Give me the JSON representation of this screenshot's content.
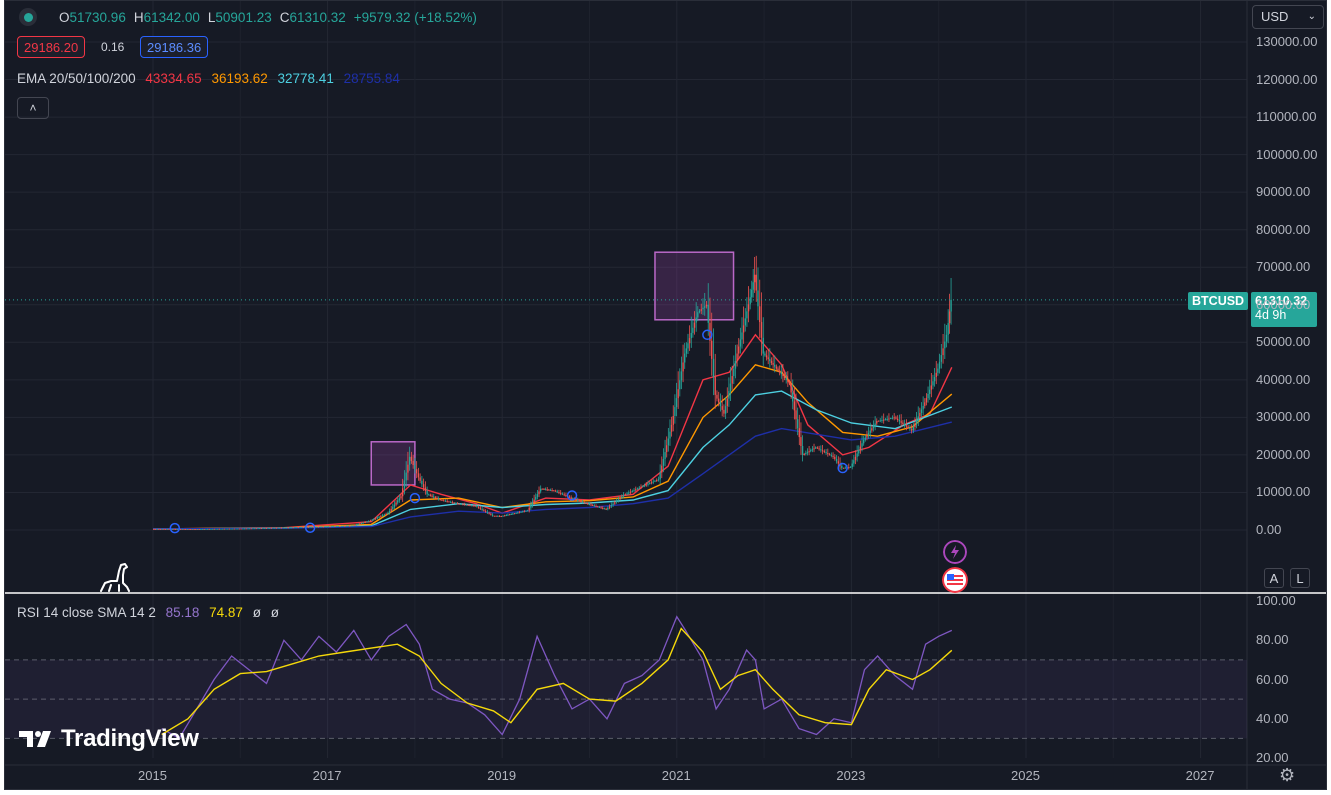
{
  "header": {
    "ohlc": [
      {
        "key": "O",
        "value": "51730.96"
      },
      {
        "key": "H",
        "value": "61342.00"
      },
      {
        "key": "L",
        "value": "50901.23"
      },
      {
        "key": "C",
        "value": "61310.32"
      }
    ],
    "change": "+9579.32 (+18.52%)",
    "sell_price": "29186.20",
    "spread": "0.16",
    "buy_price": "29186.36"
  },
  "ema": {
    "label": "EMA 20/50/100/200",
    "values": [
      {
        "value": "43334.65",
        "color": "#f23645"
      },
      {
        "value": "36193.62",
        "color": "#ff9800"
      },
      {
        "value": "32778.41",
        "color": "#4dd0e1"
      },
      {
        "value": "28755.84",
        "color": "#1e2fa8"
      }
    ]
  },
  "rsi": {
    "label": "RSI 14 close SMA 14 2",
    "value": "85.18",
    "sma": "74.87",
    "extra1": "ø",
    "extra2": "ø"
  },
  "currency": "USD",
  "symbol_tag": "BTCUSD",
  "price_tag": {
    "price": "61310.32",
    "countdown": "4d 9h"
  },
  "price_axis": [
    "130000.00",
    "120000.00",
    "110000.00",
    "100000.00",
    "90000.00",
    "80000.00",
    "70000.00",
    "60000.00",
    "50000.00",
    "40000.00",
    "30000.00",
    "20000.00",
    "10000.00",
    "0.00"
  ],
  "rsi_axis": [
    "100.00",
    "80.00",
    "60.00",
    "40.00",
    "20.00"
  ],
  "time_axis": [
    "2015",
    "2017",
    "2019",
    "2021",
    "2023",
    "2025",
    "2027"
  ],
  "scale_buttons": {
    "auto": "A",
    "log": "L"
  },
  "brand": "TradingView",
  "colors": {
    "background": "#161a25",
    "up": "#26a69a",
    "down": "#ef5350",
    "rsi_line": "#7e57c2",
    "rsi_sma": "#f5d90a",
    "highlight": "#ab47bc"
  },
  "chart_data": {
    "type": "line",
    "symbol": "BTCUSD",
    "price_ylim": [
      0,
      130000
    ],
    "rsi_ylim": [
      20,
      100
    ],
    "x_range": [
      2015.0,
      2027.5
    ],
    "price_path": [
      [
        2015.0,
        300
      ],
      [
        2015.5,
        260
      ],
      [
        2016.0,
        400
      ],
      [
        2016.5,
        650
      ],
      [
        2017.0,
        950
      ],
      [
        2017.3,
        1200
      ],
      [
        2017.5,
        2500
      ],
      [
        2017.7,
        4500
      ],
      [
        2017.85,
        9000
      ],
      [
        2017.95,
        19500
      ],
      [
        2018.05,
        14000
      ],
      [
        2018.15,
        9500
      ],
      [
        2018.3,
        8000
      ],
      [
        2018.5,
        7000
      ],
      [
        2018.7,
        6400
      ],
      [
        2018.9,
        3800
      ],
      [
        2019.0,
        3700
      ],
      [
        2019.3,
        5200
      ],
      [
        2019.45,
        11000
      ],
      [
        2019.6,
        10500
      ],
      [
        2019.8,
        8500
      ],
      [
        2019.95,
        7200
      ],
      [
        2020.2,
        5500
      ],
      [
        2020.4,
        9300
      ],
      [
        2020.6,
        11500
      ],
      [
        2020.8,
        13500
      ],
      [
        2020.95,
        28000
      ],
      [
        2021.1,
        47000
      ],
      [
        2021.25,
        58000
      ],
      [
        2021.35,
        60000
      ],
      [
        2021.45,
        36000
      ],
      [
        2021.55,
        31000
      ],
      [
        2021.7,
        47000
      ],
      [
        2021.85,
        62000
      ],
      [
        2021.9,
        68000
      ],
      [
        2022.0,
        47000
      ],
      [
        2022.15,
        43000
      ],
      [
        2022.3,
        39000
      ],
      [
        2022.45,
        20000
      ],
      [
        2022.6,
        22000
      ],
      [
        2022.8,
        19500
      ],
      [
        2022.9,
        16500
      ],
      [
        2023.0,
        16800
      ],
      [
        2023.15,
        24000
      ],
      [
        2023.3,
        29000
      ],
      [
        2023.5,
        30000
      ],
      [
        2023.7,
        26500
      ],
      [
        2023.85,
        34000
      ],
      [
        2024.0,
        43000
      ],
      [
        2024.1,
        52000
      ],
      [
        2024.15,
        61310
      ]
    ],
    "ema_series": [
      {
        "name": "EMA 20",
        "color": "#f23645",
        "points": [
          [
            2015.0,
            300
          ],
          [
            2016.5,
            600
          ],
          [
            2017.5,
            2200
          ],
          [
            2017.95,
            12000
          ],
          [
            2018.3,
            9500
          ],
          [
            2018.7,
            7000
          ],
          [
            2019.0,
            4500
          ],
          [
            2019.5,
            8500
          ],
          [
            2020.0,
            8000
          ],
          [
            2020.5,
            9500
          ],
          [
            2020.9,
            17000
          ],
          [
            2021.3,
            40000
          ],
          [
            2021.6,
            42000
          ],
          [
            2021.9,
            52000
          ],
          [
            2022.2,
            44000
          ],
          [
            2022.5,
            28000
          ],
          [
            2022.9,
            20000
          ],
          [
            2023.2,
            22000
          ],
          [
            2023.6,
            28000
          ],
          [
            2023.9,
            31000
          ],
          [
            2024.15,
            43334
          ]
        ]
      },
      {
        "name": "EMA 50",
        "color": "#ff9800",
        "points": [
          [
            2015.0,
            300
          ],
          [
            2016.5,
            550
          ],
          [
            2017.5,
            1500
          ],
          [
            2017.95,
            8000
          ],
          [
            2018.5,
            8500
          ],
          [
            2019.0,
            6000
          ],
          [
            2019.5,
            7500
          ],
          [
            2020.0,
            7800
          ],
          [
            2020.5,
            8800
          ],
          [
            2020.9,
            13000
          ],
          [
            2021.3,
            30000
          ],
          [
            2021.6,
            36000
          ],
          [
            2021.9,
            44000
          ],
          [
            2022.2,
            42000
          ],
          [
            2022.5,
            34000
          ],
          [
            2022.9,
            26000
          ],
          [
            2023.3,
            25000
          ],
          [
            2023.7,
            27500
          ],
          [
            2024.15,
            36193
          ]
        ]
      },
      {
        "name": "EMA 100",
        "color": "#4dd0e1",
        "points": [
          [
            2015.0,
            300
          ],
          [
            2016.5,
            500
          ],
          [
            2017.5,
            1100
          ],
          [
            2017.95,
            5500
          ],
          [
            2018.5,
            7000
          ],
          [
            2019.0,
            6000
          ],
          [
            2019.5,
            6800
          ],
          [
            2020.0,
            7200
          ],
          [
            2020.5,
            8000
          ],
          [
            2020.9,
            10500
          ],
          [
            2021.3,
            22000
          ],
          [
            2021.6,
            28000
          ],
          [
            2021.9,
            36000
          ],
          [
            2022.2,
            37000
          ],
          [
            2022.6,
            32000
          ],
          [
            2023.0,
            28500
          ],
          [
            2023.5,
            27000
          ],
          [
            2024.15,
            32778
          ]
        ]
      },
      {
        "name": "EMA 200",
        "color": "#1e2fa8",
        "points": [
          [
            2015.0,
            300
          ],
          [
            2016.5,
            450
          ],
          [
            2017.5,
            900
          ],
          [
            2017.95,
            3500
          ],
          [
            2018.5,
            5000
          ],
          [
            2019.0,
            4500
          ],
          [
            2019.5,
            5500
          ],
          [
            2020.0,
            6000
          ],
          [
            2020.5,
            7000
          ],
          [
            2020.9,
            8500
          ],
          [
            2021.3,
            15000
          ],
          [
            2021.6,
            20000
          ],
          [
            2021.9,
            25000
          ],
          [
            2022.2,
            27000
          ],
          [
            2022.6,
            25500
          ],
          [
            2023.0,
            24000
          ],
          [
            2023.5,
            25000
          ],
          [
            2024.15,
            28755
          ]
        ]
      }
    ],
    "rsi_path": [
      [
        2015.1,
        35
      ],
      [
        2015.3,
        30
      ],
      [
        2015.5,
        45
      ],
      [
        2015.7,
        60
      ],
      [
        2015.9,
        72
      ],
      [
        2016.1,
        65
      ],
      [
        2016.3,
        58
      ],
      [
        2016.5,
        80
      ],
      [
        2016.7,
        70
      ],
      [
        2016.9,
        82
      ],
      [
        2017.1,
        74
      ],
      [
        2017.3,
        85
      ],
      [
        2017.5,
        70
      ],
      [
        2017.7,
        82
      ],
      [
        2017.9,
        88
      ],
      [
        2018.05,
        78
      ],
      [
        2018.2,
        55
      ],
      [
        2018.4,
        50
      ],
      [
        2018.6,
        48
      ],
      [
        2018.8,
        42
      ],
      [
        2019.0,
        32
      ],
      [
        2019.2,
        50
      ],
      [
        2019.4,
        82
      ],
      [
        2019.6,
        62
      ],
      [
        2019.8,
        45
      ],
      [
        2020.0,
        50
      ],
      [
        2020.2,
        40
      ],
      [
        2020.4,
        58
      ],
      [
        2020.6,
        62
      ],
      [
        2020.8,
        70
      ],
      [
        2021.0,
        92
      ],
      [
        2021.1,
        85
      ],
      [
        2021.3,
        70
      ],
      [
        2021.45,
        45
      ],
      [
        2021.6,
        55
      ],
      [
        2021.8,
        75
      ],
      [
        2021.9,
        70
      ],
      [
        2022.0,
        45
      ],
      [
        2022.2,
        50
      ],
      [
        2022.4,
        35
      ],
      [
        2022.6,
        32
      ],
      [
        2022.8,
        40
      ],
      [
        2023.0,
        38
      ],
      [
        2023.15,
        65
      ],
      [
        2023.3,
        72
      ],
      [
        2023.5,
        62
      ],
      [
        2023.7,
        55
      ],
      [
        2023.85,
        78
      ],
      [
        2024.0,
        82
      ],
      [
        2024.15,
        85
      ]
    ],
    "rsi_sma_path": [
      [
        2015.1,
        32
      ],
      [
        2015.4,
        40
      ],
      [
        2015.7,
        55
      ],
      [
        2016.0,
        63
      ],
      [
        2016.3,
        64
      ],
      [
        2016.6,
        68
      ],
      [
        2016.9,
        72
      ],
      [
        2017.2,
        74
      ],
      [
        2017.5,
        76
      ],
      [
        2017.8,
        78
      ],
      [
        2018.05,
        72
      ],
      [
        2018.3,
        58
      ],
      [
        2018.6,
        48
      ],
      [
        2018.9,
        44
      ],
      [
        2019.1,
        38
      ],
      [
        2019.4,
        55
      ],
      [
        2019.7,
        58
      ],
      [
        2020.0,
        50
      ],
      [
        2020.3,
        49
      ],
      [
        2020.6,
        58
      ],
      [
        2020.9,
        70
      ],
      [
        2021.05,
        86
      ],
      [
        2021.3,
        74
      ],
      [
        2021.5,
        55
      ],
      [
        2021.7,
        62
      ],
      [
        2021.9,
        65
      ],
      [
        2022.1,
        55
      ],
      [
        2022.4,
        42
      ],
      [
        2022.7,
        38
      ],
      [
        2023.0,
        37
      ],
      [
        2023.2,
        55
      ],
      [
        2023.4,
        65
      ],
      [
        2023.7,
        60
      ],
      [
        2023.9,
        65
      ],
      [
        2024.15,
        74.87
      ]
    ],
    "highlight_boxes": [
      {
        "x": [
          2017.5,
          2018.0
        ],
        "y": [
          12000,
          23500
        ]
      },
      {
        "x": [
          2020.75,
          2021.65
        ],
        "y": [
          56000,
          74000
        ]
      }
    ],
    "event_markers": [
      {
        "x": 2015.25,
        "y": 500
      },
      {
        "x": 2016.8,
        "y": 600
      },
      {
        "x": 2018.0,
        "y": 8500
      },
      {
        "x": 2019.8,
        "y": 9200
      },
      {
        "x": 2021.35,
        "y": 52000
      },
      {
        "x": 2022.9,
        "y": 16500
      }
    ]
  }
}
